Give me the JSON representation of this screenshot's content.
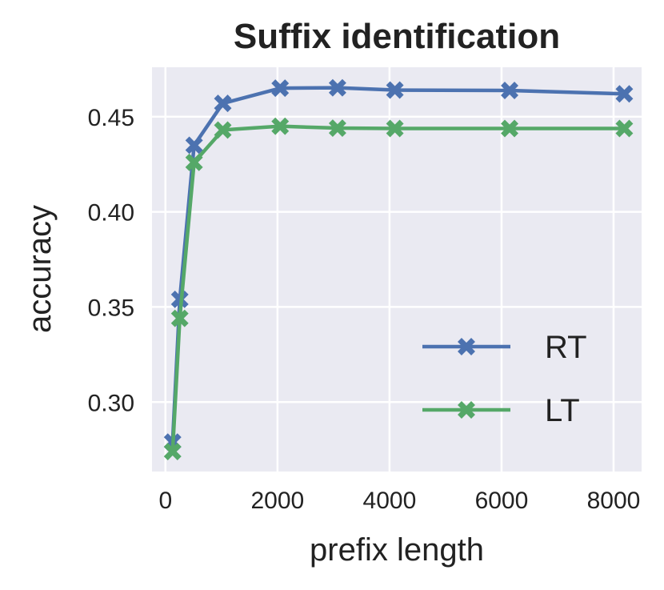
{
  "chart_data": {
    "type": "line",
    "title": "Suffix identification",
    "xlabel": "prefix length",
    "ylabel": "accuracy",
    "xlim": [
      -240,
      8500
    ],
    "ylim": [
      0.2635,
      0.476
    ],
    "xticks": [
      0,
      2000,
      4000,
      6000,
      8000
    ],
    "xtick_labels": [
      "0",
      "2000",
      "4000",
      "6000",
      "8000"
    ],
    "yticks": [
      0.3,
      0.35,
      0.4,
      0.45
    ],
    "ytick_labels": [
      "0.30",
      "0.35",
      "0.40",
      "0.45"
    ],
    "grid": true,
    "legend_position": "lower right",
    "x": [
      128,
      256,
      512,
      1024,
      2048,
      3072,
      4096,
      6144,
      8192
    ],
    "series": [
      {
        "name": "RT",
        "color": "#4c72b0",
        "marker": "x",
        "values": [
          0.279,
          0.354,
          0.435,
          0.457,
          0.465,
          0.4652,
          0.464,
          0.4638,
          0.462
        ]
      },
      {
        "name": "LT",
        "color": "#55a868",
        "marker": "x",
        "values": [
          0.274,
          0.344,
          0.426,
          0.443,
          0.445,
          0.444,
          0.4438,
          0.4438,
          0.4438
        ]
      }
    ]
  }
}
